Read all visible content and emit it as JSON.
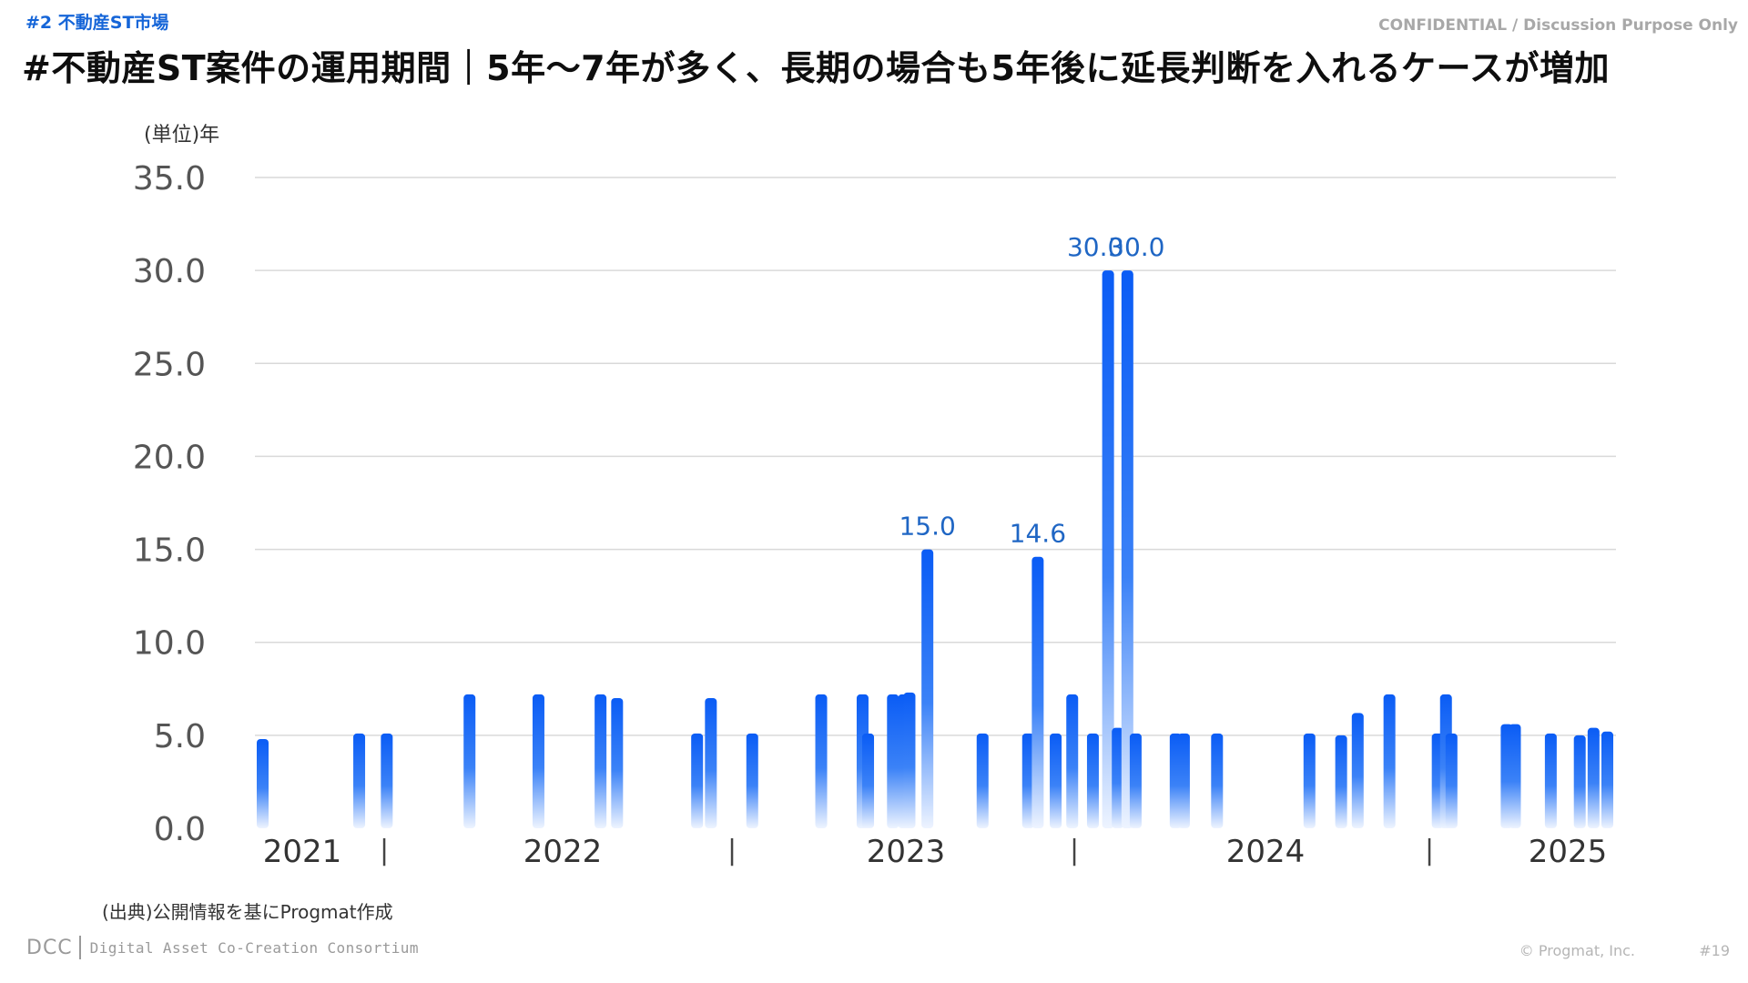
{
  "header": {
    "section_tag": "#2 不動産ST市場",
    "confidential": "CONFIDENTIAL / Discussion Purpose Only",
    "title": "#不動産ST案件の運用期間｜5年〜7年が多く、長期の場合も5年後に延長判断を入れるケースが増加"
  },
  "footer": {
    "source_note": "(出典)公開情報を基にProgmat作成",
    "logo_dcc": "DCC",
    "logo_text": "Digital Asset Co-Creation Consortium",
    "copyright": "© Progmat, Inc.",
    "page_number": "#19"
  },
  "colors": {
    "bar_top": "#0a5cf5",
    "bar_bottom": "#eef4ff",
    "data_label": "#1f66c4",
    "axis_text": "#555555",
    "grid": "#d9d9d9"
  },
  "chart_data": {
    "type": "bar",
    "ylabel": "(単位)年",
    "ylim": [
      0,
      35
    ],
    "yticks": [
      "0.0",
      "5.0",
      "10.0",
      "15.0",
      "20.0",
      "25.0",
      "30.0",
      "35.0"
    ],
    "grid": true,
    "year_labels": [
      "2021",
      "2022",
      "2023",
      "2024",
      "2025"
    ],
    "year_separators": [
      "|",
      "|",
      "|",
      "|"
    ],
    "values": [
      4.8,
      5.1,
      5.1,
      7.2,
      7.2,
      7.2,
      7.0,
      5.1,
      7.0,
      5.1,
      7.2,
      7.2,
      5.1,
      7.2,
      7.2,
      7.3,
      15.0,
      5.1,
      5.1,
      14.6,
      5.1,
      7.2,
      5.1,
      30.0,
      5.4,
      30.0,
      5.1,
      5.1,
      5.1,
      5.1,
      5.1,
      5.0,
      6.2,
      7.2,
      5.1,
      7.2,
      5.1,
      5.6,
      5.6,
      5.1,
      5.0,
      5.4,
      5.2
    ],
    "data_labels": [
      {
        "index": 16,
        "text": "15.0"
      },
      {
        "index": 19,
        "text": "14.6"
      },
      {
        "index": 23,
        "text": "30.0"
      },
      {
        "index": 25,
        "text": "30.0"
      }
    ]
  }
}
